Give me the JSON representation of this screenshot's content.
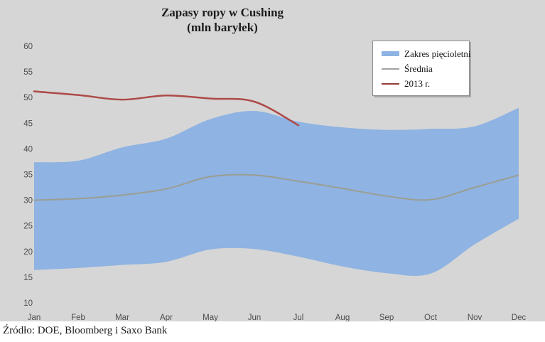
{
  "title": {
    "line1": "Zapasy ropy w Cushing",
    "line2": "(mln baryłek)"
  },
  "source": "Źródło: DOE, Bloomberg i Saxo Bank",
  "legend": {
    "items": [
      {
        "label": "Zakres pięcioletni",
        "type": "band",
        "color": "#8fb3e2"
      },
      {
        "label": "Średnia",
        "type": "line",
        "color": "#a3a3a3"
      },
      {
        "label": "2013 r.",
        "type": "line",
        "color": "#953c39"
      }
    ]
  },
  "colors": {
    "background": "#d6d6d6",
    "footer_background": "#ffffff",
    "band_fill": "#8fb3e2",
    "average_line": "#9a9e92",
    "line_2013": "#ad4a48",
    "axis_text": "#4d4d4d",
    "title_text": "#1c1c1c"
  },
  "chart_data": {
    "type": "area",
    "title": "Zapasy ropy w Cushing (mln baryłek)",
    "categories": [
      "Jan",
      "Feb",
      "Mar",
      "Apr",
      "May",
      "Jun",
      "Jul",
      "Aug",
      "Sep",
      "Oct",
      "Nov",
      "Dec"
    ],
    "series": [
      {
        "name": "Zakres pięcioletni",
        "type": "band",
        "high": [
          37.4,
          37.7,
          40.3,
          42.0,
          45.8,
          47.4,
          45.3,
          44.2,
          43.7,
          43.9,
          44.4,
          48.0
        ],
        "low": [
          16.4,
          16.8,
          17.4,
          18.0,
          20.4,
          20.5,
          19.0,
          17.1,
          15.8,
          15.7,
          21.4,
          26.4
        ]
      },
      {
        "name": "Średnia",
        "type": "line",
        "values": [
          30.0,
          30.3,
          31.0,
          32.2,
          34.6,
          34.9,
          33.7,
          32.3,
          30.8,
          30.1,
          32.5,
          34.9
        ]
      },
      {
        "name": "2013 r.",
        "type": "line",
        "values": [
          51.2,
          50.5,
          49.6,
          50.4,
          49.8,
          49.2,
          44.6
        ]
      }
    ],
    "xlabel": "",
    "ylabel": "",
    "ylim": [
      10,
      60
    ],
    "yticks": [
      60,
      55,
      50,
      45,
      40,
      35,
      30,
      25,
      20,
      15,
      10
    ],
    "grid": false,
    "legend_position": "top-right"
  }
}
